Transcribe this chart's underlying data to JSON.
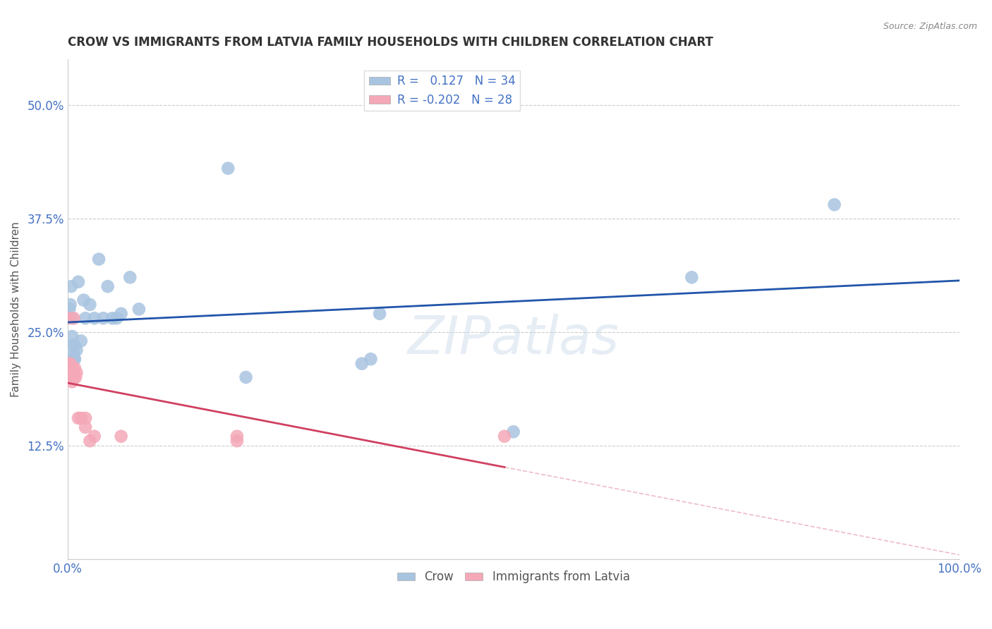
{
  "title": "CROW VS IMMIGRANTS FROM LATVIA FAMILY HOUSEHOLDS WITH CHILDREN CORRELATION CHART",
  "source": "Source: ZipAtlas.com",
  "ylabel": "Family Households with Children",
  "xlim": [
    0,
    1.0
  ],
  "ylim": [
    0,
    0.55
  ],
  "xticks": [
    0.0,
    0.1,
    0.2,
    0.3,
    0.4,
    0.5,
    0.6,
    0.7,
    0.8,
    0.9,
    1.0
  ],
  "xticklabels": [
    "0.0%",
    "",
    "",
    "",
    "",
    "",
    "",
    "",
    "",
    "",
    "100.0%"
  ],
  "yticks": [
    0.0,
    0.125,
    0.25,
    0.375,
    0.5
  ],
  "yticklabels": [
    "",
    "12.5%",
    "25.0%",
    "37.5%",
    "50.0%"
  ],
  "legend1_label": "R =   0.127   N = 34",
  "legend2_label": "R = -0.202   N = 28",
  "legend_bottom_label1": "Crow",
  "legend_bottom_label2": "Immigrants from Latvia",
  "crow_color": "#a8c4e0",
  "latvia_color": "#f4a8b8",
  "crow_line_color": "#2255aa",
  "latvia_line_color": "#d04060",
  "watermark": "ZIPatlas",
  "crow_x": [
    0.002,
    0.003,
    0.004,
    0.005,
    0.005,
    0.006,
    0.006,
    0.007,
    0.007,
    0.008,
    0.008,
    0.01,
    0.012,
    0.015,
    0.018,
    0.02,
    0.025,
    0.03,
    0.035,
    0.04,
    0.045,
    0.05,
    0.055,
    0.06,
    0.07,
    0.08,
    0.18,
    0.2,
    0.33,
    0.34,
    0.35,
    0.5,
    0.7,
    0.86
  ],
  "crow_y": [
    0.275,
    0.28,
    0.3,
    0.265,
    0.245,
    0.235,
    0.22,
    0.22,
    0.225,
    0.235,
    0.22,
    0.23,
    0.305,
    0.24,
    0.285,
    0.265,
    0.28,
    0.265,
    0.33,
    0.265,
    0.3,
    0.265,
    0.265,
    0.27,
    0.31,
    0.275,
    0.43,
    0.2,
    0.215,
    0.22,
    0.27,
    0.14,
    0.31,
    0.39
  ],
  "latvia_x": [
    0.001,
    0.002,
    0.002,
    0.003,
    0.003,
    0.003,
    0.004,
    0.004,
    0.005,
    0.005,
    0.005,
    0.006,
    0.006,
    0.007,
    0.007,
    0.008,
    0.009,
    0.01,
    0.012,
    0.015,
    0.02,
    0.02,
    0.025,
    0.03,
    0.06,
    0.19,
    0.19,
    0.49
  ],
  "latvia_y": [
    0.265,
    0.215,
    0.2,
    0.215,
    0.2,
    0.21,
    0.21,
    0.2,
    0.2,
    0.195,
    0.21,
    0.2,
    0.2,
    0.265,
    0.2,
    0.21,
    0.2,
    0.205,
    0.155,
    0.155,
    0.155,
    0.145,
    0.13,
    0.135,
    0.135,
    0.135,
    0.13,
    0.135
  ]
}
